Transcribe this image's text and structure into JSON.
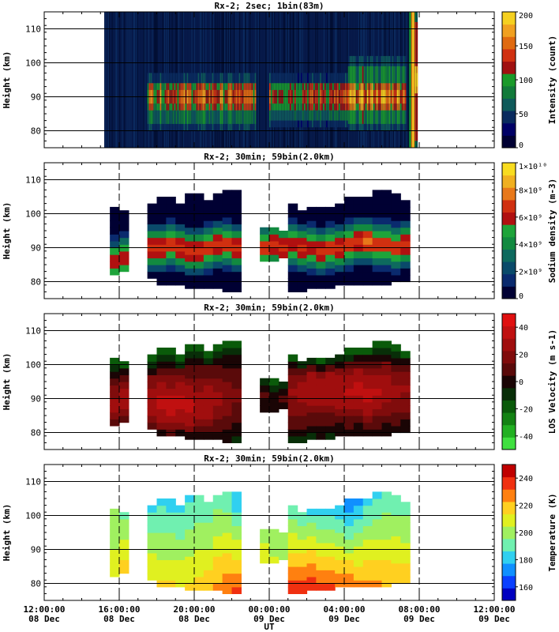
{
  "chart_data": [
    {
      "type": "heatmap",
      "title": "Rx-2;  2sec; 1bin(83m)",
      "ylabel": "Height (km)",
      "ylim": [
        75,
        115
      ],
      "yticks": [
        80,
        90,
        100,
        110
      ],
      "colorbar": {
        "label": "Intensity (count)",
        "range": [
          0,
          200
        ],
        "ticks": [
          "0",
          "50",
          "100",
          "150",
          "200"
        ],
        "tick_values": [
          0,
          50,
          100,
          150,
          200
        ],
        "colors": [
          "#000033",
          "#000066",
          "#0a2b5e",
          "#0f5a5a",
          "#127a3a",
          "#1a9a2a",
          "#a01010",
          "#d03010",
          "#e06a10",
          "#f0a020",
          "#f5d020"
        ]
      },
      "features": [
        {
          "ut_start": 17.5,
          "ut_end": 23.3,
          "h_low": 80,
          "h_high": 97,
          "peak_h": 90,
          "level": 140
        },
        {
          "ut_start": 24.0,
          "ut_end": 28.2,
          "h_low": 81,
          "h_high": 97,
          "peak_h": 90,
          "level": 130
        },
        {
          "ut_start": 28.2,
          "ut_end": 31.3,
          "h_low": 80,
          "h_high": 102,
          "peak_h": 90,
          "level": 160
        },
        {
          "ut_start": 31.6,
          "ut_end": 31.9,
          "h_low": 75,
          "h_high": 115,
          "peak_h": 95,
          "level": 200
        }
      ]
    },
    {
      "type": "heatmap",
      "title": "Rx-2; 30min; 59bin(2.0km)",
      "ylabel": "Height (km)",
      "ylim": [
        75,
        115
      ],
      "yticks": [
        80,
        90,
        100,
        110
      ],
      "colorbar": {
        "label": "Sodium density (m-3)",
        "range": [
          0,
          10000000000.0
        ],
        "ticks": [
          "0",
          "2×10⁹",
          "4×10⁹",
          "6×10⁹",
          "8×10⁹",
          "1×10¹⁰"
        ],
        "tick_values": [
          0,
          2000000000.0,
          4000000000.0,
          6000000000.0,
          8000000000.0,
          10000000000.0
        ],
        "colors": [
          "#000033",
          "#0a2a6e",
          "#0a4a6a",
          "#0e6a5e",
          "#128a40",
          "#1ea43a",
          "#b01010",
          "#d03010",
          "#e8781a",
          "#f0b020",
          "#f8dc20"
        ]
      },
      "columns": [
        {
          "ut": 15.75,
          "bottom": 82,
          "top": 101,
          "peak": 86,
          "val": 0.62
        },
        {
          "ut": 16.25,
          "bottom": 83,
          "top": 100,
          "peak": 87,
          "val": 0.65
        },
        {
          "ut": 17.75,
          "bottom": 81,
          "top": 102,
          "peak": 90,
          "val": 0.66
        },
        {
          "ut": 18.25,
          "bottom": 79,
          "top": 104,
          "peak": 90,
          "val": 0.68
        },
        {
          "ut": 18.75,
          "bottom": 79,
          "top": 104,
          "peak": 91,
          "val": 0.67
        },
        {
          "ut": 19.25,
          "bottom": 79,
          "top": 102,
          "peak": 90,
          "val": 0.66
        },
        {
          "ut": 19.75,
          "bottom": 78,
          "top": 105,
          "peak": 89,
          "val": 0.64
        },
        {
          "ut": 20.25,
          "bottom": 78,
          "top": 105,
          "peak": 89,
          "val": 0.66
        },
        {
          "ut": 20.75,
          "bottom": 78,
          "top": 104,
          "peak": 90,
          "val": 0.68
        },
        {
          "ut": 21.25,
          "bottom": 78,
          "top": 106,
          "peak": 91,
          "val": 0.68
        },
        {
          "ut": 21.75,
          "bottom": 77,
          "top": 106,
          "peak": 91,
          "val": 0.66
        },
        {
          "ut": 22.25,
          "bottom": 77,
          "top": 107,
          "peak": 90,
          "val": 0.64
        },
        {
          "ut": 23.75,
          "bottom": 86,
          "top": 96,
          "peak": 90,
          "val": 0.7
        },
        {
          "ut": 24.25,
          "bottom": 86,
          "top": 96,
          "peak": 91,
          "val": 0.72
        },
        {
          "ut": 24.75,
          "bottom": 87,
          "top": 95,
          "peak": 90,
          "val": 0.7
        },
        {
          "ut": 25.25,
          "bottom": 77,
          "top": 102,
          "peak": 91,
          "val": 0.64
        },
        {
          "ut": 25.75,
          "bottom": 77,
          "top": 101,
          "peak": 90,
          "val": 0.64
        },
        {
          "ut": 26.25,
          "bottom": 78,
          "top": 102,
          "peak": 90,
          "val": 0.64
        },
        {
          "ut": 26.75,
          "bottom": 78,
          "top": 101,
          "peak": 89,
          "val": 0.64
        },
        {
          "ut": 27.25,
          "bottom": 78,
          "top": 102,
          "peak": 90,
          "val": 0.66
        },
        {
          "ut": 27.75,
          "bottom": 79,
          "top": 103,
          "peak": 90,
          "val": 0.68
        },
        {
          "ut": 28.25,
          "bottom": 79,
          "top": 104,
          "peak": 91,
          "val": 0.7
        },
        {
          "ut": 28.75,
          "bottom": 79,
          "top": 104,
          "peak": 92,
          "val": 0.72
        },
        {
          "ut": 29.25,
          "bottom": 79,
          "top": 105,
          "peak": 92,
          "val": 0.74
        },
        {
          "ut": 29.75,
          "bottom": 79,
          "top": 106,
          "peak": 91,
          "val": 0.72
        },
        {
          "ut": 30.25,
          "bottom": 79,
          "top": 106,
          "peak": 91,
          "val": 0.72
        },
        {
          "ut": 30.75,
          "bottom": 80,
          "top": 105,
          "peak": 90,
          "val": 0.72
        },
        {
          "ut": 31.25,
          "bottom": 80,
          "top": 103,
          "peak": 91,
          "val": 0.7
        }
      ]
    },
    {
      "type": "heatmap",
      "title": "Rx-2; 30min; 59bin(2.0km)",
      "ylabel": "Height (km)",
      "ylim": [
        75,
        115
      ],
      "yticks": [
        80,
        90,
        100,
        110
      ],
      "colorbar": {
        "label": "LOS Velocity (m s-1)",
        "range": [
          -50,
          50
        ],
        "ticks": [
          "-40",
          "-20",
          "0",
          "20",
          "40"
        ],
        "tick_values": [
          -40,
          -20,
          0,
          20,
          40
        ],
        "colors": [
          "#40e040",
          "#22b022",
          "#138213",
          "#0a5a0a",
          "#082e08",
          "#1a0505",
          "#5a0a0a",
          "#800c0c",
          "#a00e0e",
          "#c01010",
          "#e01010"
        ]
      },
      "columns": [
        {
          "ut": 15.75,
          "bottom": 82,
          "top": 101,
          "peak": 88,
          "val": 24
        },
        {
          "ut": 16.25,
          "bottom": 83,
          "top": 100,
          "peak": 90,
          "val": 28
        },
        {
          "ut": 17.75,
          "bottom": 81,
          "top": 102,
          "peak": 89,
          "val": 30
        },
        {
          "ut": 18.25,
          "bottom": 79,
          "top": 104,
          "peak": 89,
          "val": 34
        },
        {
          "ut": 18.75,
          "bottom": 79,
          "top": 104,
          "peak": 88,
          "val": 38
        },
        {
          "ut": 19.25,
          "bottom": 79,
          "top": 102,
          "peak": 89,
          "val": 36
        },
        {
          "ut": 19.75,
          "bottom": 78,
          "top": 105,
          "peak": 88,
          "val": 34
        },
        {
          "ut": 20.25,
          "bottom": 78,
          "top": 105,
          "peak": 88,
          "val": 32
        },
        {
          "ut": 20.75,
          "bottom": 78,
          "top": 104,
          "peak": 89,
          "val": 30
        },
        {
          "ut": 21.25,
          "bottom": 78,
          "top": 106,
          "peak": 90,
          "val": 26
        },
        {
          "ut": 21.75,
          "bottom": 77,
          "top": 106,
          "peak": 90,
          "val": 20
        },
        {
          "ut": 22.25,
          "bottom": 77,
          "top": 107,
          "peak": 91,
          "val": 14
        },
        {
          "ut": 23.75,
          "bottom": 86,
          "top": 96,
          "peak": 90,
          "val": 6
        },
        {
          "ut": 24.25,
          "bottom": 86,
          "top": 96,
          "peak": 90,
          "val": 4
        },
        {
          "ut": 24.75,
          "bottom": 87,
          "top": 95,
          "peak": 91,
          "val": 12
        },
        {
          "ut": 25.25,
          "bottom": 77,
          "top": 102,
          "peak": 92,
          "val": 24
        },
        {
          "ut": 25.75,
          "bottom": 77,
          "top": 101,
          "peak": 92,
          "val": 28
        },
        {
          "ut": 26.25,
          "bottom": 78,
          "top": 102,
          "peak": 93,
          "val": 30
        },
        {
          "ut": 26.75,
          "bottom": 78,
          "top": 101,
          "peak": 92,
          "val": 28
        },
        {
          "ut": 27.25,
          "bottom": 78,
          "top": 102,
          "peak": 93,
          "val": 30
        },
        {
          "ut": 27.75,
          "bottom": 79,
          "top": 103,
          "peak": 92,
          "val": 30
        },
        {
          "ut": 28.25,
          "bottom": 79,
          "top": 104,
          "peak": 92,
          "val": 32
        },
        {
          "ut": 28.75,
          "bottom": 79,
          "top": 104,
          "peak": 93,
          "val": 34
        },
        {
          "ut": 29.25,
          "bottom": 79,
          "top": 105,
          "peak": 91,
          "val": 36
        },
        {
          "ut": 29.75,
          "bottom": 79,
          "top": 106,
          "peak": 92,
          "val": 32
        },
        {
          "ut": 30.25,
          "bottom": 79,
          "top": 106,
          "peak": 93,
          "val": 30
        },
        {
          "ut": 30.75,
          "bottom": 80,
          "top": 105,
          "peak": 92,
          "val": 26
        },
        {
          "ut": 31.25,
          "bottom": 80,
          "top": 103,
          "peak": 93,
          "val": 24
        }
      ]
    },
    {
      "type": "heatmap",
      "title": "Rx-2; 30min; 59bin(2.0km)",
      "ylabel": "Height (km)",
      "ylim": [
        75,
        115
      ],
      "yticks": [
        80,
        90,
        100,
        110
      ],
      "colorbar": {
        "label": "Temperature (K)",
        "range": [
          150,
          250
        ],
        "ticks": [
          "160",
          "180",
          "200",
          "220",
          "240"
        ],
        "tick_values": [
          160,
          180,
          200,
          220,
          240
        ],
        "colors": [
          "#0000c0",
          "#0a40ff",
          "#1090ff",
          "#30d0f0",
          "#70f0b0",
          "#a0f060",
          "#e0f020",
          "#ffd020",
          "#ff8010",
          "#f03010",
          "#c00000"
        ]
      },
      "columns": [
        {
          "ut": 15.75,
          "bottom": 82,
          "top": 101,
          "top_temp": 196,
          "bottom_temp": 210
        },
        {
          "ut": 16.25,
          "bottom": 83,
          "top": 100,
          "top_temp": 192,
          "bottom_temp": 222
        },
        {
          "ut": 17.75,
          "bottom": 81,
          "top": 102,
          "top_temp": 186,
          "bottom_temp": 214
        },
        {
          "ut": 18.25,
          "bottom": 79,
          "top": 104,
          "top_temp": 184,
          "bottom_temp": 216
        },
        {
          "ut": 18.75,
          "bottom": 79,
          "top": 104,
          "top_temp": 182,
          "bottom_temp": 216
        },
        {
          "ut": 19.25,
          "bottom": 79,
          "top": 102,
          "top_temp": 184,
          "bottom_temp": 214
        },
        {
          "ut": 19.75,
          "bottom": 78,
          "top": 105,
          "top_temp": 186,
          "bottom_temp": 216
        },
        {
          "ut": 20.25,
          "bottom": 78,
          "top": 105,
          "top_temp": 188,
          "bottom_temp": 218
        },
        {
          "ut": 20.75,
          "bottom": 78,
          "top": 104,
          "top_temp": 188,
          "bottom_temp": 220
        },
        {
          "ut": 21.25,
          "bottom": 78,
          "top": 106,
          "top_temp": 190,
          "bottom_temp": 226
        },
        {
          "ut": 21.75,
          "bottom": 77,
          "top": 106,
          "top_temp": 188,
          "bottom_temp": 232
        },
        {
          "ut": 22.25,
          "bottom": 77,
          "top": 107,
          "top_temp": 176,
          "bottom_temp": 234
        },
        {
          "ut": 23.75,
          "bottom": 86,
          "top": 96,
          "top_temp": 202,
          "bottom_temp": 208
        },
        {
          "ut": 24.25,
          "bottom": 86,
          "top": 96,
          "top_temp": 200,
          "bottom_temp": 206
        },
        {
          "ut": 24.75,
          "bottom": 87,
          "top": 95,
          "top_temp": 196,
          "bottom_temp": 204
        },
        {
          "ut": 25.25,
          "bottom": 77,
          "top": 102,
          "top_temp": 188,
          "bottom_temp": 240
        },
        {
          "ut": 25.75,
          "bottom": 77,
          "top": 101,
          "top_temp": 186,
          "bottom_temp": 242
        },
        {
          "ut": 26.25,
          "bottom": 78,
          "top": 102,
          "top_temp": 184,
          "bottom_temp": 240
        },
        {
          "ut": 26.75,
          "bottom": 78,
          "top": 101,
          "top_temp": 186,
          "bottom_temp": 238
        },
        {
          "ut": 27.25,
          "bottom": 78,
          "top": 102,
          "top_temp": 182,
          "bottom_temp": 236
        },
        {
          "ut": 27.75,
          "bottom": 79,
          "top": 103,
          "top_temp": 176,
          "bottom_temp": 232
        },
        {
          "ut": 28.25,
          "bottom": 79,
          "top": 104,
          "top_temp": 172,
          "bottom_temp": 230
        },
        {
          "ut": 28.75,
          "bottom": 79,
          "top": 104,
          "top_temp": 176,
          "bottom_temp": 228
        },
        {
          "ut": 29.25,
          "bottom": 79,
          "top": 105,
          "top_temp": 182,
          "bottom_temp": 228
        },
        {
          "ut": 29.75,
          "bottom": 79,
          "top": 106,
          "top_temp": 186,
          "bottom_temp": 226
        },
        {
          "ut": 30.25,
          "bottom": 79,
          "top": 106,
          "top_temp": 188,
          "bottom_temp": 224
        },
        {
          "ut": 30.75,
          "bottom": 80,
          "top": 105,
          "top_temp": 190,
          "bottom_temp": 222
        },
        {
          "ut": 31.25,
          "bottom": 80,
          "top": 103,
          "top_temp": 192,
          "bottom_temp": 220
        }
      ]
    }
  ],
  "xaxis": {
    "label": "UT",
    "range_ut": [
      12,
      36
    ],
    "ticks": [
      {
        "ut": 12,
        "time": "12:00:00",
        "date": "08 Dec"
      },
      {
        "ut": 16,
        "time": "16:00:00",
        "date": "08 Dec"
      },
      {
        "ut": 20,
        "time": "20:00:00",
        "date": "08 Dec"
      },
      {
        "ut": 24,
        "time": "00:00:00",
        "date": "09 Dec"
      },
      {
        "ut": 28,
        "time": "04:00:00",
        "date": "09 Dec"
      },
      {
        "ut": 32,
        "time": "08:00:00",
        "date": "09 Dec"
      },
      {
        "ut": 36,
        "time": "12:00:00",
        "date": "09 Dec"
      }
    ],
    "dashed_ut": [
      16,
      20,
      24,
      28,
      32
    ]
  }
}
